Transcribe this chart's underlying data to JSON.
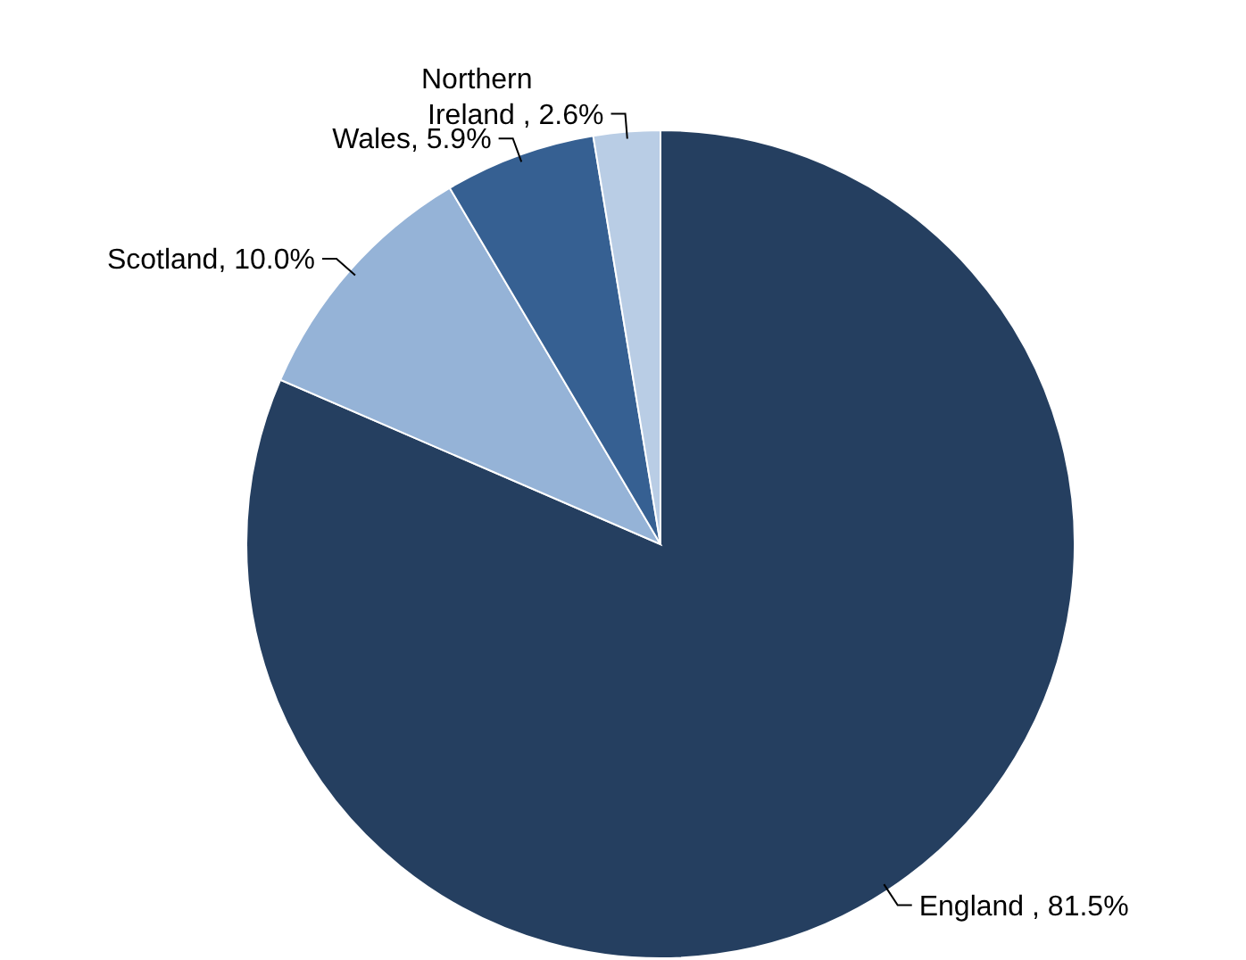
{
  "chart_data": {
    "type": "pie",
    "categories": [
      "England ",
      "Scotland",
      "Wales",
      "Northern Ireland "
    ],
    "values": [
      81.5,
      10.0,
      5.9,
      2.6
    ],
    "colors": [
      "#253f60",
      "#95b3d7",
      "#366092",
      "#b9cde5"
    ],
    "value_labels": [
      ", 81.5%",
      ", 10.0%",
      ", 5.9%",
      ", 2.6%"
    ]
  }
}
